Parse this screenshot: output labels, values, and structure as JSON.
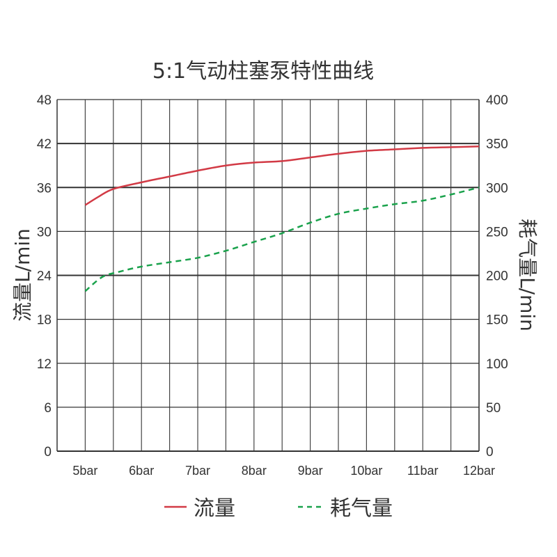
{
  "chart_data": {
    "type": "line",
    "title": "5:1气动柱塞泵特性曲线",
    "categories": [
      "5bar",
      "6bar",
      "7bar",
      "8bar",
      "9bar",
      "10bar",
      "11bar",
      "12bar"
    ],
    "x_positions": [
      5,
      5.5,
      6,
      6.5,
      7,
      7.5,
      8,
      8.5,
      9,
      9.5,
      10,
      10.5,
      11,
      11.5,
      12
    ],
    "y_left": {
      "label": "流量L/min",
      "ticks": [
        0,
        6,
        12,
        18,
        24,
        30,
        36,
        42,
        48
      ],
      "lim": [
        0,
        48
      ]
    },
    "y_right": {
      "label": "耗气量L/min",
      "ticks": [
        0,
        50,
        100,
        150,
        200,
        250,
        300,
        350,
        400
      ],
      "lim": [
        0,
        400
      ]
    },
    "grid": true,
    "legend_position": "bottom",
    "series": [
      {
        "name": "流量",
        "axis": "left",
        "style": "solid",
        "color": "#d23a45",
        "x": [
          5,
          5.25,
          5.5,
          6,
          6.5,
          7,
          7.5,
          8,
          8.5,
          9,
          9.5,
          10,
          10.5,
          11,
          11.5,
          12
        ],
        "values": [
          33.6,
          34.8,
          35.8,
          36.7,
          37.5,
          38.3,
          39.0,
          39.4,
          39.6,
          40.1,
          40.6,
          41.0,
          41.2,
          41.4,
          41.5,
          41.6
        ]
      },
      {
        "name": "耗气量",
        "axis": "right",
        "style": "dashed",
        "color": "#1aa24c",
        "x": [
          5,
          5.3,
          5.6,
          6,
          6.5,
          7,
          7.5,
          8,
          8.5,
          9,
          9.5,
          10,
          10.5,
          11,
          11.5,
          12
        ],
        "values": [
          182,
          198,
          204,
          210,
          215,
          220,
          228,
          238,
          248,
          260,
          270,
          276,
          281,
          285,
          292,
          300
        ]
      }
    ]
  }
}
